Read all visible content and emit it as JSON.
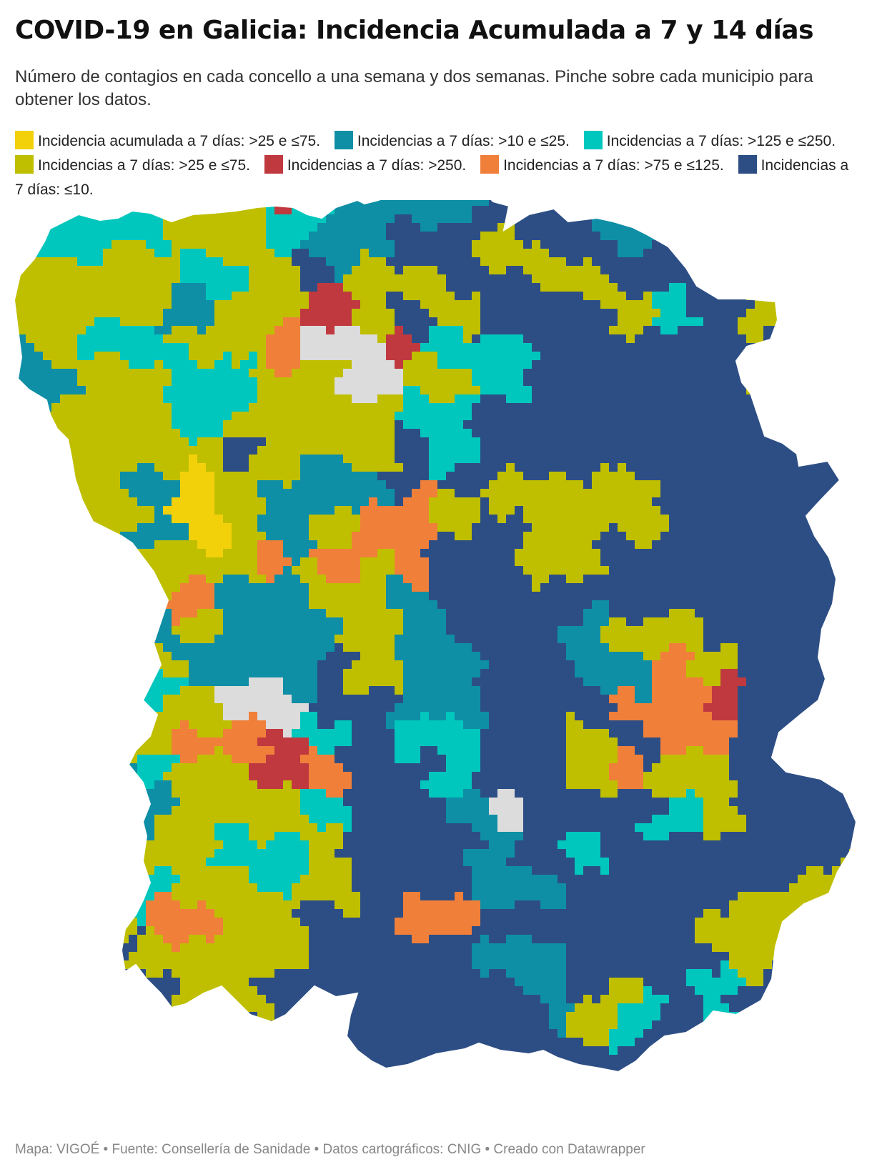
{
  "header": {
    "title": "COVID-19 en Galicia: Incidencia Acumulada a 7 y 14 días",
    "subtitle": "Número de contagios en cada concello a una semana y dos semanas. Pinche sobre cada municipio para obtener los datos."
  },
  "legend": [
    {
      "label": "Incidencia acumulada a 7 días: >25 e ≤75.",
      "color": "#f3d10a"
    },
    {
      "label": "Incidencias a 7 días: >10 e ≤25.",
      "color": "#0e8fa6"
    },
    {
      "label": "Incidencias a 7 días: >125 e ≤250.",
      "color": "#00c7bd"
    },
    {
      "label": "Incidencias a 7 días: >25 e ≤75.",
      "color": "#bfbf00"
    },
    {
      "label": "Incidencias a 7 días: >250.",
      "color": "#c0393f"
    },
    {
      "label": "Incidencias a 7 días: >75 e ≤125.",
      "color": "#f07f3a"
    },
    {
      "label": "Incidencias a 7 días: ≤10.",
      "color": "#2d4e85"
    }
  ],
  "map": {
    "region": "Galicia",
    "no_data_color": "#dcdcdc",
    "border_color": "#ffffff"
  },
  "footer": {
    "text": "Mapa: VIGOÉ • Fuente: Consellería de Sanidade • Datos cartográficos: CNIG • Creado con Datawrapper"
  }
}
